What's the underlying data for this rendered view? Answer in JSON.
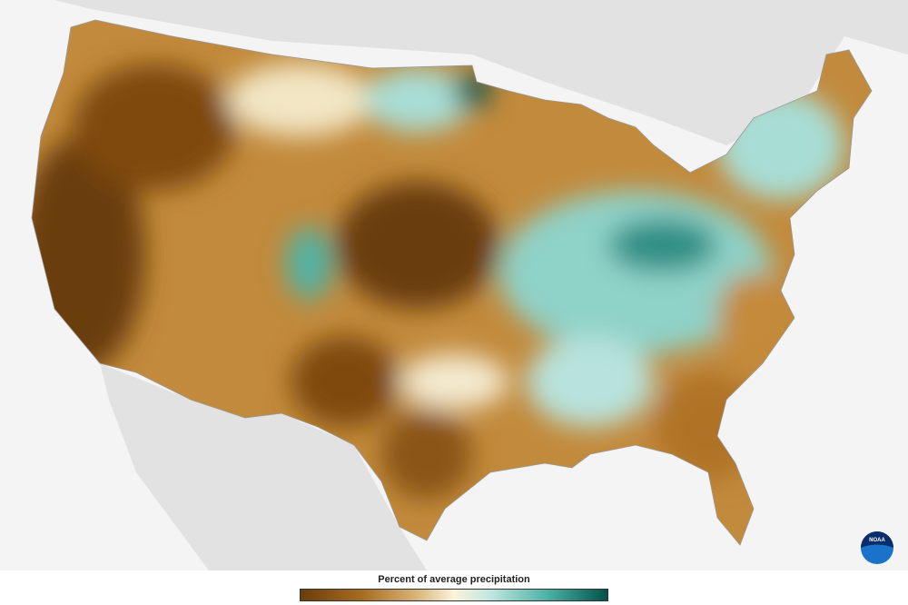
{
  "legend": {
    "title": "Percent of average precipitation"
  },
  "logo": {
    "text": "NOAA"
  }
}
